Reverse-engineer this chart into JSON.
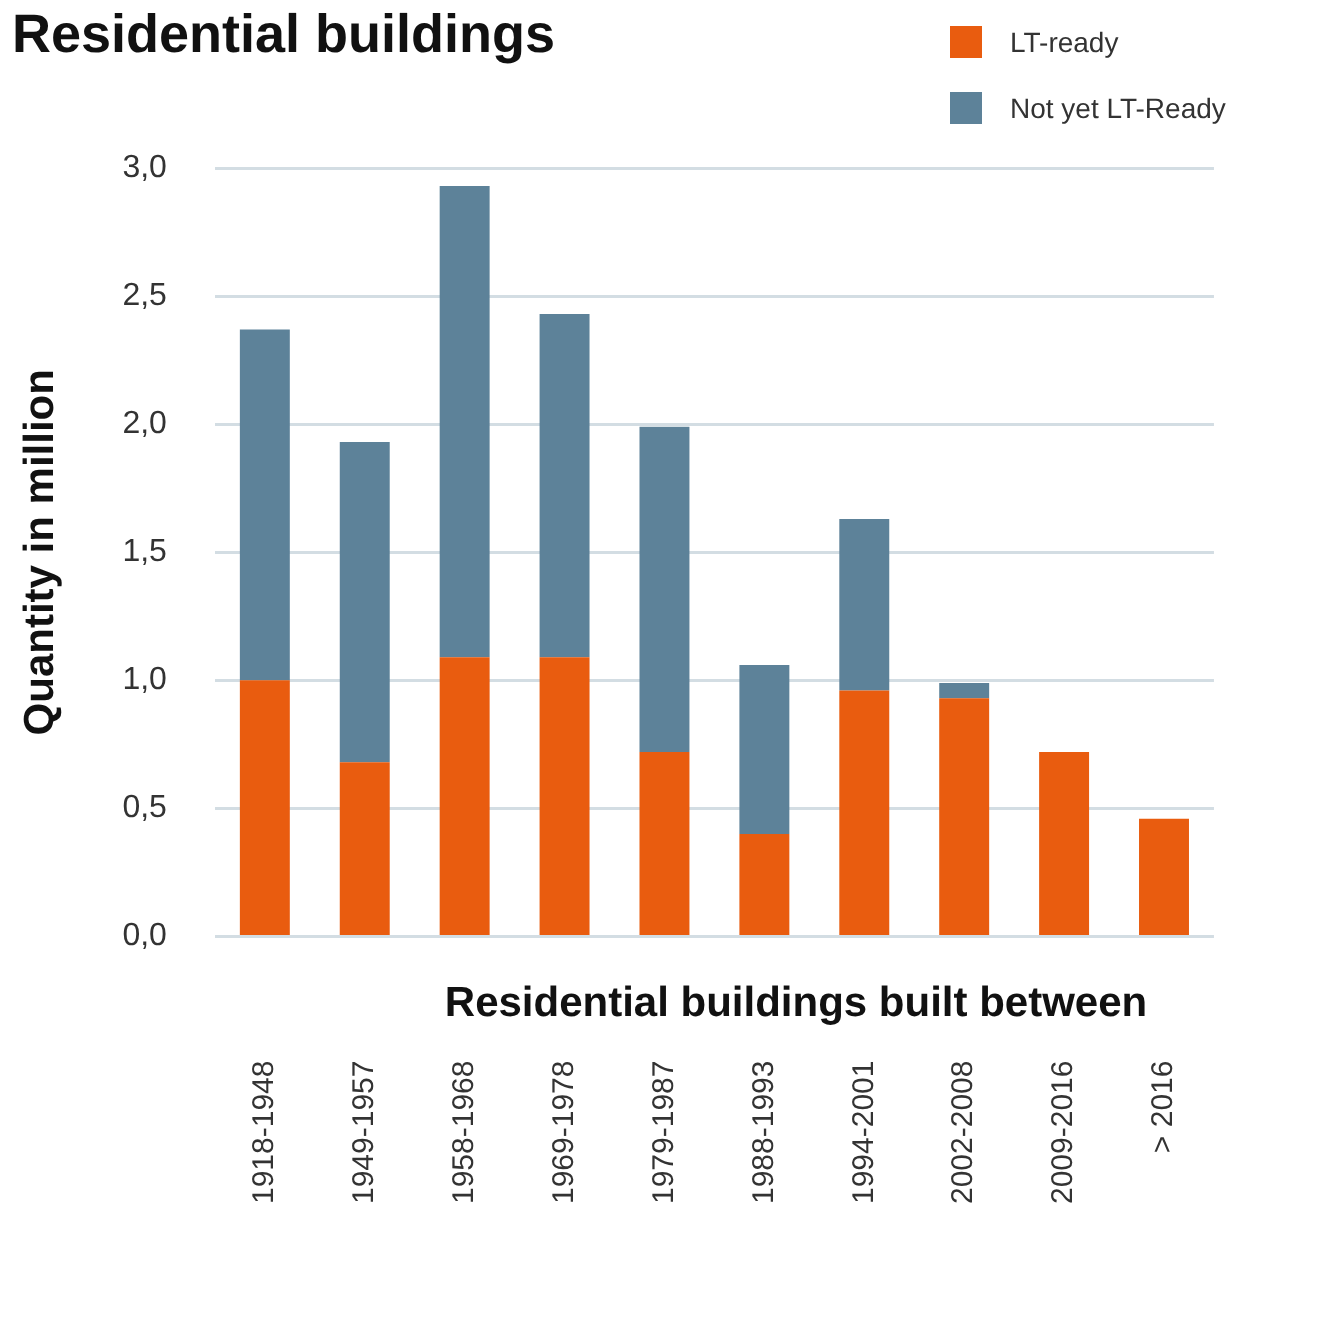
{
  "chart_data": {
    "type": "bar",
    "title": "Residential buildings",
    "xlabel": "Residential buildings built between",
    "ylabel": "Quantity in million",
    "categories": [
      "1918-1948",
      "1949-1957",
      "1958-1968",
      "1969-1978",
      "1979-1987",
      "1988-1993",
      "1994-2001",
      "2002-2008",
      "2009-2016",
      "> 2016"
    ],
    "series": [
      {
        "name": "LT-ready",
        "color": "#e95c0f",
        "values": [
          1.0,
          0.68,
          1.09,
          1.09,
          0.72,
          0.4,
          0.96,
          0.93,
          0.72,
          0.46
        ]
      },
      {
        "name": "Not yet LT-Ready",
        "color": "#5d8299",
        "values": [
          1.37,
          1.25,
          1.84,
          1.34,
          1.27,
          0.66,
          0.67,
          0.06,
          null,
          null
        ]
      }
    ],
    "stacked": true,
    "ylim": [
      0,
      3
    ],
    "yticks": [
      {
        "value": 0,
        "label": "0,0"
      },
      {
        "value": 0.5,
        "label": "0,5"
      },
      {
        "value": 1,
        "label": "1,0"
      },
      {
        "value": 1.5,
        "label": "1,5"
      },
      {
        "value": 2,
        "label": "2,0"
      },
      {
        "value": 2.5,
        "label": "2,5"
      },
      {
        "value": 3,
        "label": "3,0"
      }
    ],
    "grid": "y",
    "legend": "top right"
  }
}
